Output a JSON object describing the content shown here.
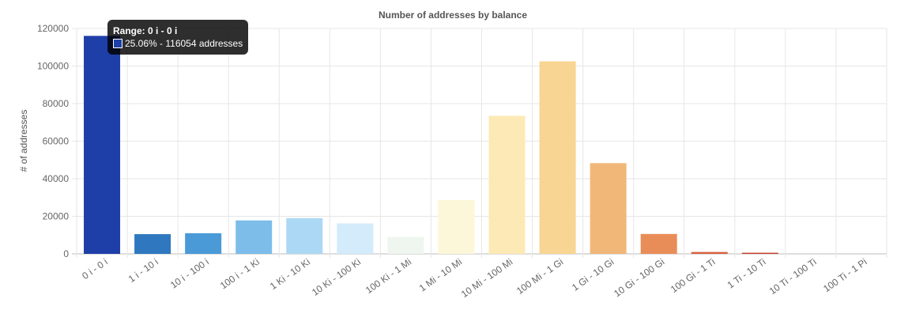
{
  "chart_data": {
    "type": "bar",
    "title": "Number of addresses by balance",
    "xlabel": "",
    "ylabel": "# of addresses",
    "ylim": [
      0,
      120000
    ],
    "yticks": [
      0,
      20000,
      40000,
      60000,
      80000,
      100000,
      120000
    ],
    "grid": true,
    "categories": [
      "0 i - 0 i",
      "1 i - 10 i",
      "10 i - 100 i",
      "100 i - 1 Ki",
      "1 Ki - 10 Ki",
      "10 Ki - 100 Ki",
      "100 Ki - 1 Mi",
      "1 Mi - 10 Mi",
      "10 Mi - 100 Mi",
      "100 Mi - 1 Gi",
      "1 Gi - 10 Gi",
      "10 Gi - 100 Gi",
      "100 Gi - 1 Ti",
      "1 Ti - 10 Ti",
      "10 Ti - 100 Ti",
      "100 Ti - 1 Pi"
    ],
    "values": [
      116054,
      10500,
      11000,
      17800,
      19000,
      16200,
      9000,
      28700,
      73500,
      102500,
      48300,
      10600,
      1000,
      600,
      0,
      0
    ],
    "colors": [
      "#1f3fa8",
      "#2f78bf",
      "#4a9ad8",
      "#7cbde9",
      "#acd8f5",
      "#d3ebfb",
      "#eef6ef",
      "#fcf7d9",
      "#fde9b5",
      "#f8d592",
      "#f1b778",
      "#e98d58",
      "#d9603f",
      "#c44132",
      "#b32a29",
      "#a11c24"
    ]
  },
  "tooltip": {
    "title": "Range: 0 i - 0 i",
    "body": "25.06% - 116054 addresses",
    "swatch_color": "#1f3fa8"
  }
}
